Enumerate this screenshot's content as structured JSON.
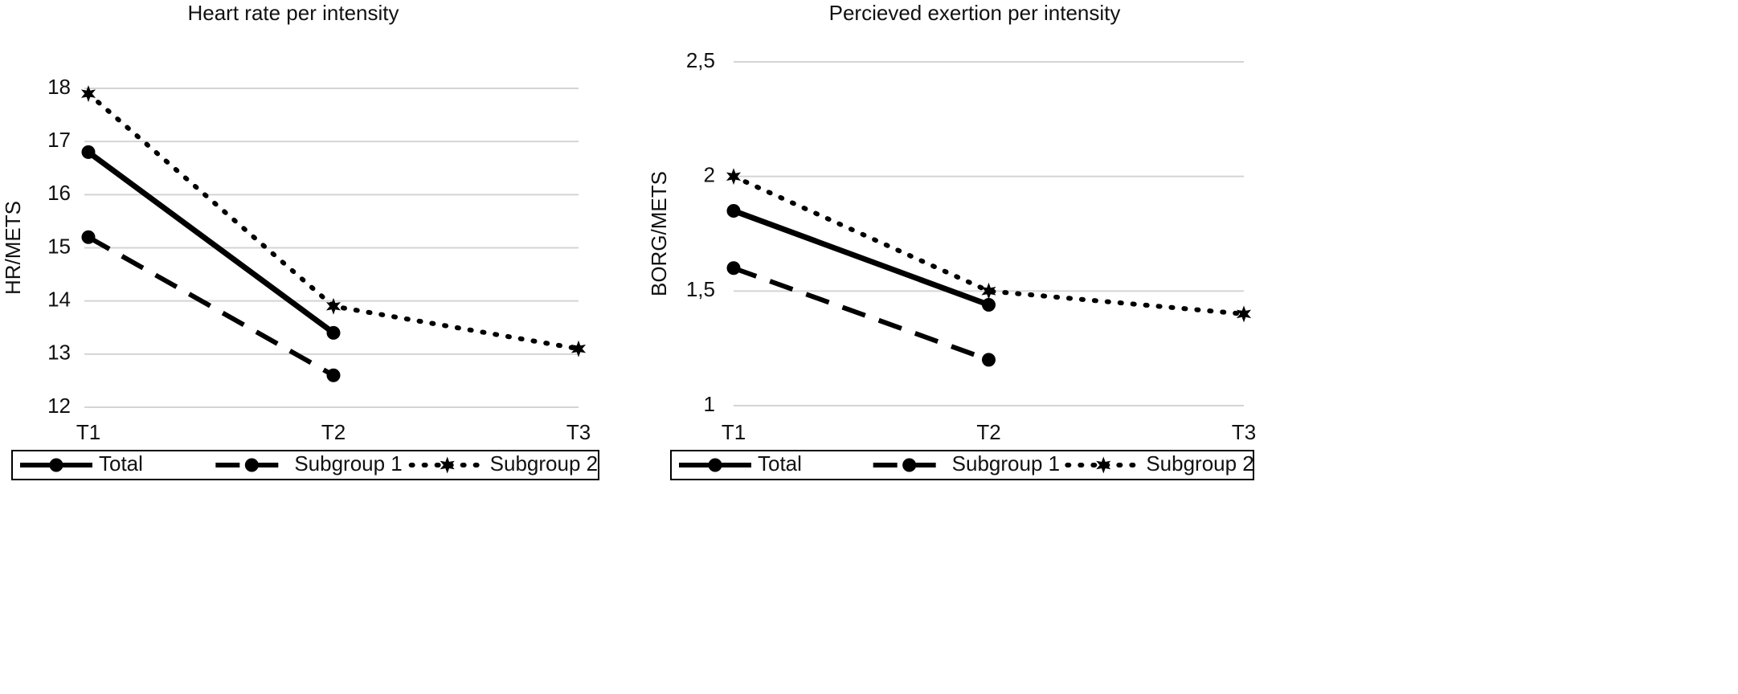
{
  "chart_data": [
    {
      "type": "line",
      "title": "Heart rate per intensity",
      "ylabel": "HR/METS",
      "categories": [
        "T1",
        "T2",
        "T3"
      ],
      "ylim": [
        12,
        18
      ],
      "yticks": [
        12,
        13,
        14,
        15,
        16,
        17,
        18
      ],
      "grid": true,
      "legend": "bottom",
      "series": [
        {
          "name": "Total",
          "color": "#000000",
          "style": "solid",
          "marker": "circle",
          "values": [
            16.8,
            13.4,
            null
          ]
        },
        {
          "name": "Subgroup 1",
          "color": "#000000",
          "style": "dashed",
          "marker": "circle",
          "values": [
            15.2,
            12.6,
            null
          ]
        },
        {
          "name": "Subgroup 2",
          "color": "#000000",
          "style": "dotted",
          "marker": "star",
          "values": [
            17.9,
            13.9,
            13.1
          ]
        }
      ]
    },
    {
      "type": "line",
      "title": "Percieved exertion per intensity",
      "ylabel": "BORG/METS",
      "categories": [
        "T1",
        "T2",
        "T3"
      ],
      "ylim": [
        1,
        2.5
      ],
      "yticks": [
        1,
        {
          "value": 1.5,
          "label": "1,5"
        },
        2,
        {
          "value": 2.5,
          "label": "2,5"
        }
      ],
      "grid": true,
      "legend": "bottom",
      "series": [
        {
          "name": "Total",
          "color": "#000000",
          "style": "solid",
          "marker": "circle",
          "values": [
            1.85,
            1.44,
            null
          ]
        },
        {
          "name": "Subgroup 1",
          "color": "#000000",
          "style": "dashed",
          "marker": "circle",
          "values": [
            1.6,
            1.2,
            null
          ]
        },
        {
          "name": "Subgroup 2",
          "color": "#000000",
          "style": "dotted",
          "marker": "star",
          "values": [
            2.0,
            1.5,
            1.4
          ]
        }
      ]
    }
  ]
}
